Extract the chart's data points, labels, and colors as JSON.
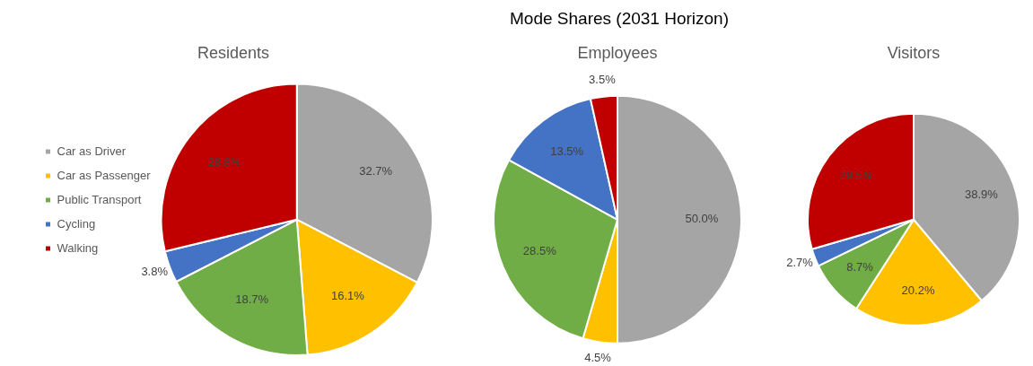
{
  "chart_data": [
    {
      "type": "other",
      "title": "Mode Shares (2031 Horizon)"
    },
    {
      "type": "pie",
      "title": "Residents",
      "categories": [
        "Car as Driver",
        "Car as Passenger",
        "Public Transport",
        "Cycling",
        "Walking"
      ],
      "values": [
        32.7,
        16.1,
        18.7,
        3.8,
        28.8
      ],
      "value_labels": [
        "32.7%",
        "16.1%",
        "18.7%",
        "3.8%",
        "28.8%"
      ],
      "colors": [
        "#a5a5a5",
        "#ffc000",
        "#70ad47",
        "#4472c4",
        "#c00000"
      ],
      "legend": "left"
    },
    {
      "type": "pie",
      "title": "Employees",
      "categories": [
        null,
        null,
        null,
        null,
        null
      ],
      "values": [
        50.0,
        4.5,
        28.5,
        13.5,
        3.5
      ],
      "value_labels": [
        "50.0%",
        "4.5%",
        "28.5%",
        "13.5%",
        "3.5%"
      ],
      "colors": [
        "#a5a5a5",
        "#ffc000",
        "#70ad47",
        "#4472c4",
        "#c00000"
      ]
    },
    {
      "type": "pie",
      "title": "Visitors",
      "categories": [
        null,
        null,
        null,
        null,
        null
      ],
      "values": [
        38.9,
        20.2,
        8.7,
        2.7,
        29.5
      ],
      "value_labels": [
        "38.9%",
        "20.2%",
        "8.7%",
        "2.7%",
        "29.5%"
      ],
      "colors": [
        "#a5a5a5",
        "#ffc000",
        "#70ad47",
        "#4472c4",
        "#c00000"
      ]
    }
  ]
}
